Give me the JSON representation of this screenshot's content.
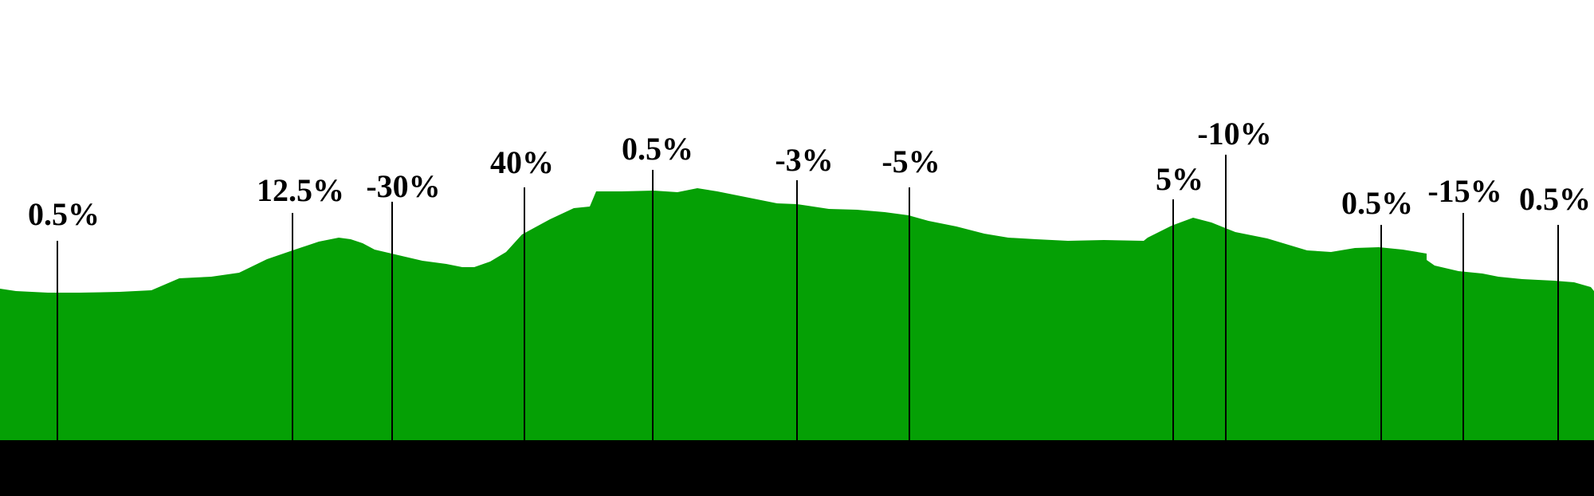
{
  "colors": {
    "terrain": "#05a005",
    "base": "#000000",
    "background": "#ffffff",
    "marker": "#000000"
  },
  "profile": {
    "markers": [
      {
        "label": "0.5%"
      },
      {
        "label": "12.5%"
      },
      {
        "label": "-30%"
      },
      {
        "label": "40%"
      },
      {
        "label": "0.5%"
      },
      {
        "label": "-3%"
      },
      {
        "label": "-5%"
      },
      {
        "label": "5%"
      },
      {
        "label": "-10%"
      },
      {
        "label": "0.5%"
      },
      {
        "label": "-15%"
      },
      {
        "label": "0.5%"
      }
    ]
  }
}
